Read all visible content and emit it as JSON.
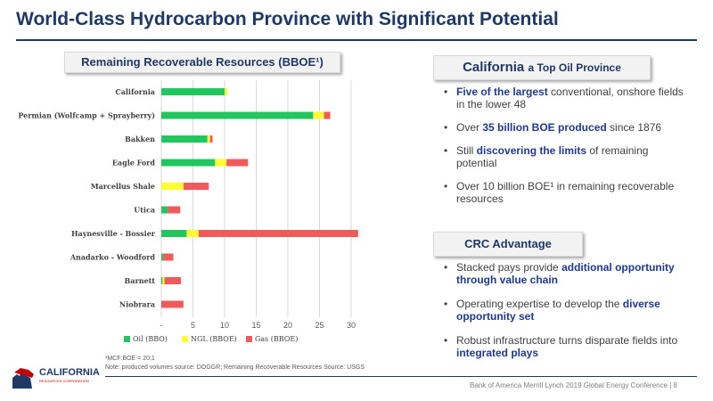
{
  "slide": {
    "title": "World-Class Hydrocarbon Province with Significant Potential",
    "chart_header": "Remaining Recoverable Resources (BBOE¹)"
  },
  "chart_data": {
    "type": "bar",
    "orientation": "horizontal",
    "stacked": true,
    "title": "Remaining Recoverable Resources (BBOE¹)",
    "categories": [
      "California",
      "Permian (Wolfcamp + Sprayberry)",
      "Bakken",
      "Eagle Ford",
      "Marcellus Shale",
      "Utica",
      "Haynesville - Bossier",
      "Anadarko - Woodford",
      "Barnett",
      "Niobrara"
    ],
    "series": [
      {
        "name": "Oil (BBO)",
        "color": "#22c55e",
        "values": [
          10,
          24,
          7.3,
          8.5,
          0,
          1,
          4,
          0.3,
          0.2,
          0
        ]
      },
      {
        "name": "NGL (BBOE)",
        "color": "#ffff33",
        "values": [
          0.4,
          1.7,
          0.4,
          1.8,
          3.5,
          0,
          1.9,
          0,
          0.3,
          0
        ]
      },
      {
        "name": "Gas (BBOE)",
        "color": "#f15a5a",
        "values": [
          0,
          1,
          0.4,
          3.4,
          4,
          2,
          25.2,
          1.6,
          2.6,
          3.5
        ]
      }
    ],
    "xlim": [
      0,
      30
    ],
    "x_ticks": [
      "-",
      "5",
      "10",
      "15",
      "20",
      "25",
      "30"
    ],
    "grid": true,
    "legend_position": "bottom"
  },
  "california": {
    "header_main": "California",
    "header_rest": "a Top Oil Province",
    "bullets": [
      {
        "hl": "Five of the largest",
        "rest": " conventional, onshore fields in the lower 48"
      },
      {
        "pre": "Over ",
        "hl": "35 billion BOE produced",
        "rest": " since 1876"
      },
      {
        "pre": "Still ",
        "hl": "discovering the limits",
        "rest": " of remaining potential"
      },
      {
        "pre": "Over 10 billion BOE¹ in remaining recoverable resources"
      }
    ]
  },
  "crc": {
    "header": "CRC Advantage",
    "bullets": [
      {
        "pre": "Stacked pays provide ",
        "hl": "additional opportunity through value chain"
      },
      {
        "pre": "Operating expertise to develop the ",
        "hl": "diverse opportunity set"
      },
      {
        "pre": "Robust infrastructure turns disparate fields into ",
        "hl": "integrated plays"
      }
    ]
  },
  "footnotes": {
    "mcf": "¹MCF:BOE = 20:1",
    "sources": "Note: produced volumes source: DOGGR; Remaining Recoverable Resources Source: USGS"
  },
  "footer": {
    "conference": "Bank of America Merrill Lynch 2019 Global Energy Conference | 8"
  },
  "logo": {
    "name": "CALIFORNIA",
    "subtitle": "RESOURCES CORPORATION"
  },
  "colors": {
    "brand_navy": "#1f3864",
    "highlight_blue": "#1f3a8a"
  }
}
